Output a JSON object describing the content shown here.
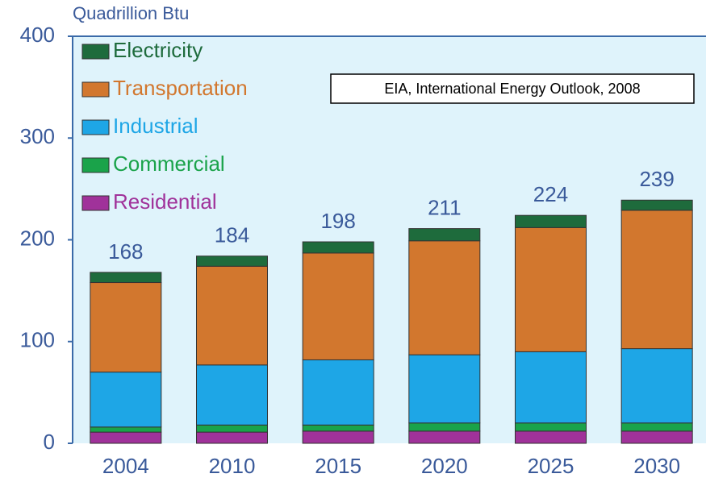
{
  "chart_data": {
    "type": "stacked_bar",
    "title": "Quadrillion Btu",
    "annotation": "EIA, International Energy Outlook, 2008",
    "categories": [
      "2004",
      "2010",
      "2015",
      "2020",
      "2025",
      "2030"
    ],
    "series": [
      {
        "name": "Residential",
        "color": "#a0329a",
        "values": [
          11,
          11,
          12,
          12,
          12,
          12
        ]
      },
      {
        "name": "Commercial",
        "color": "#1aa34a",
        "values": [
          5,
          7,
          6,
          8,
          8,
          8
        ]
      },
      {
        "name": "Industrial",
        "color": "#1ea6e6",
        "values": [
          54,
          59,
          64,
          67,
          70,
          73
        ]
      },
      {
        "name": "Transportation",
        "color": "#d2772e",
        "values": [
          88,
          97,
          105,
          112,
          122,
          136
        ]
      },
      {
        "name": "Electricity",
        "color": "#1e6b3c",
        "values": [
          10,
          10,
          11,
          12,
          12,
          10
        ]
      }
    ],
    "totals": [
      168,
      184,
      198,
      211,
      224,
      239
    ],
    "ylim": [
      0,
      400
    ],
    "yticks": [
      0,
      100,
      200,
      300,
      400
    ]
  }
}
